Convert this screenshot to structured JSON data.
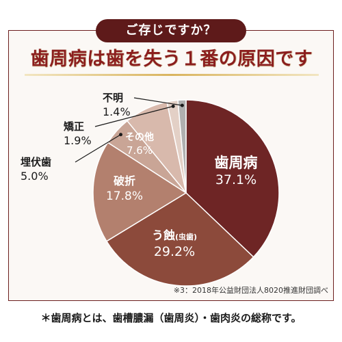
{
  "header": {
    "question": "ご存じですか？"
  },
  "headline": "歯周病は歯を失う１番の原因です",
  "chart_data": {
    "type": "pie",
    "slices": [
      {
        "label": "歯周病",
        "value": 37.1,
        "value_text": "37.1%",
        "color": "#6e2525"
      },
      {
        "label": "う蝕",
        "sub": "(虫歯)",
        "value": 29.2,
        "value_text": "29.2%",
        "color": "#8c4a3b"
      },
      {
        "label": "破折",
        "value": 17.8,
        "value_text": "17.8%",
        "color": "#b3806e"
      },
      {
        "label": "埋伏歯",
        "value": 5.0,
        "value_text": "5.0%",
        "color": "#c9a596"
      },
      {
        "label": "その他",
        "value": 7.6,
        "value_text": "7.6%",
        "color": "#d8b9ac"
      },
      {
        "label": "矯正",
        "value": 1.9,
        "value_text": "1.9%",
        "color": "#e3d0c6"
      },
      {
        "label": "不明",
        "value": 1.4,
        "value_text": "1.4%",
        "color": "#b0b0b0"
      }
    ]
  },
  "source_note": "※3：2018年公益財団法人8020推進財団調べ",
  "bottom_note": "＊歯周病とは、歯槽膿漏（歯周炎）・歯肉炎の総称です。"
}
